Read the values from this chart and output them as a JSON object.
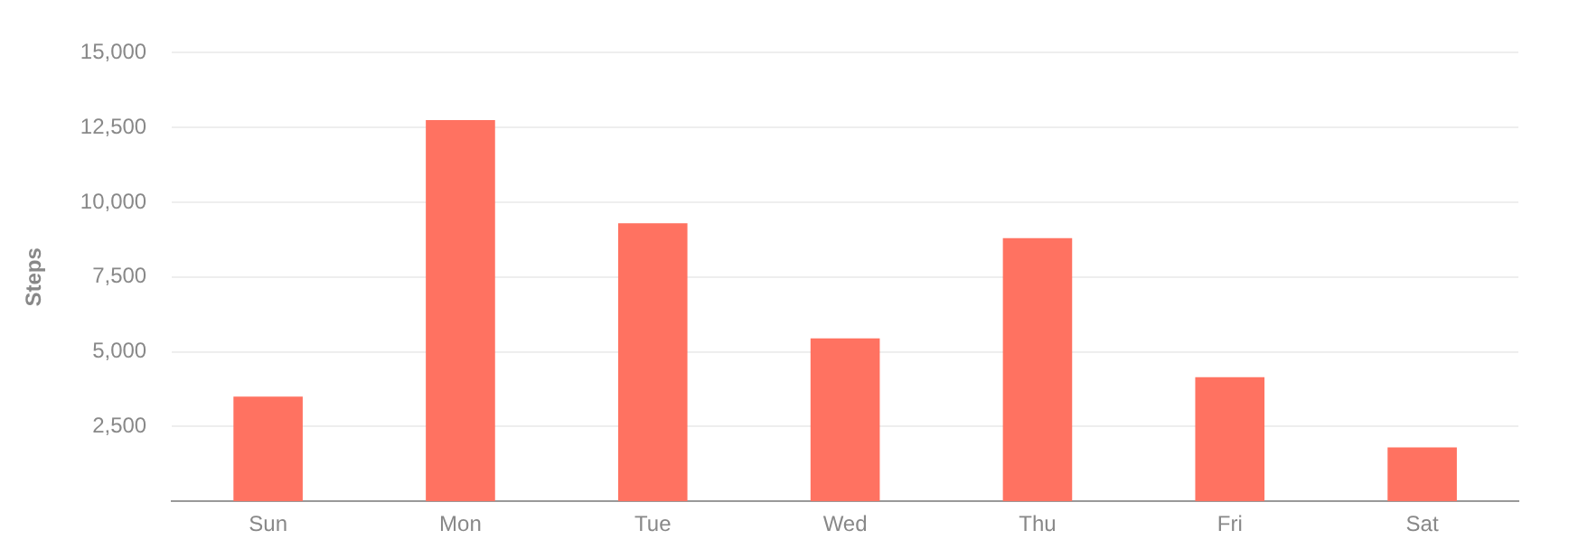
{
  "chart_data": {
    "type": "bar",
    "ylabel": "Steps",
    "categories": [
      "Sun",
      "Mon",
      "Tue",
      "Wed",
      "Thu",
      "Fri",
      "Sat"
    ],
    "values": [
      3500,
      12750,
      9300,
      5450,
      8800,
      4150,
      1800
    ],
    "color": "#ff7261",
    "ylim": [
      0,
      15000
    ],
    "yticks": [
      {
        "value": 2500,
        "label": "2,500"
      },
      {
        "value": 5000,
        "label": "5,000"
      },
      {
        "value": 7500,
        "label": "7,500"
      },
      {
        "value": 10000,
        "label": "10,000"
      },
      {
        "value": 12500,
        "label": "12,500"
      },
      {
        "value": 15000,
        "label": "15,000"
      }
    ],
    "grid": "y",
    "legend": false
  }
}
